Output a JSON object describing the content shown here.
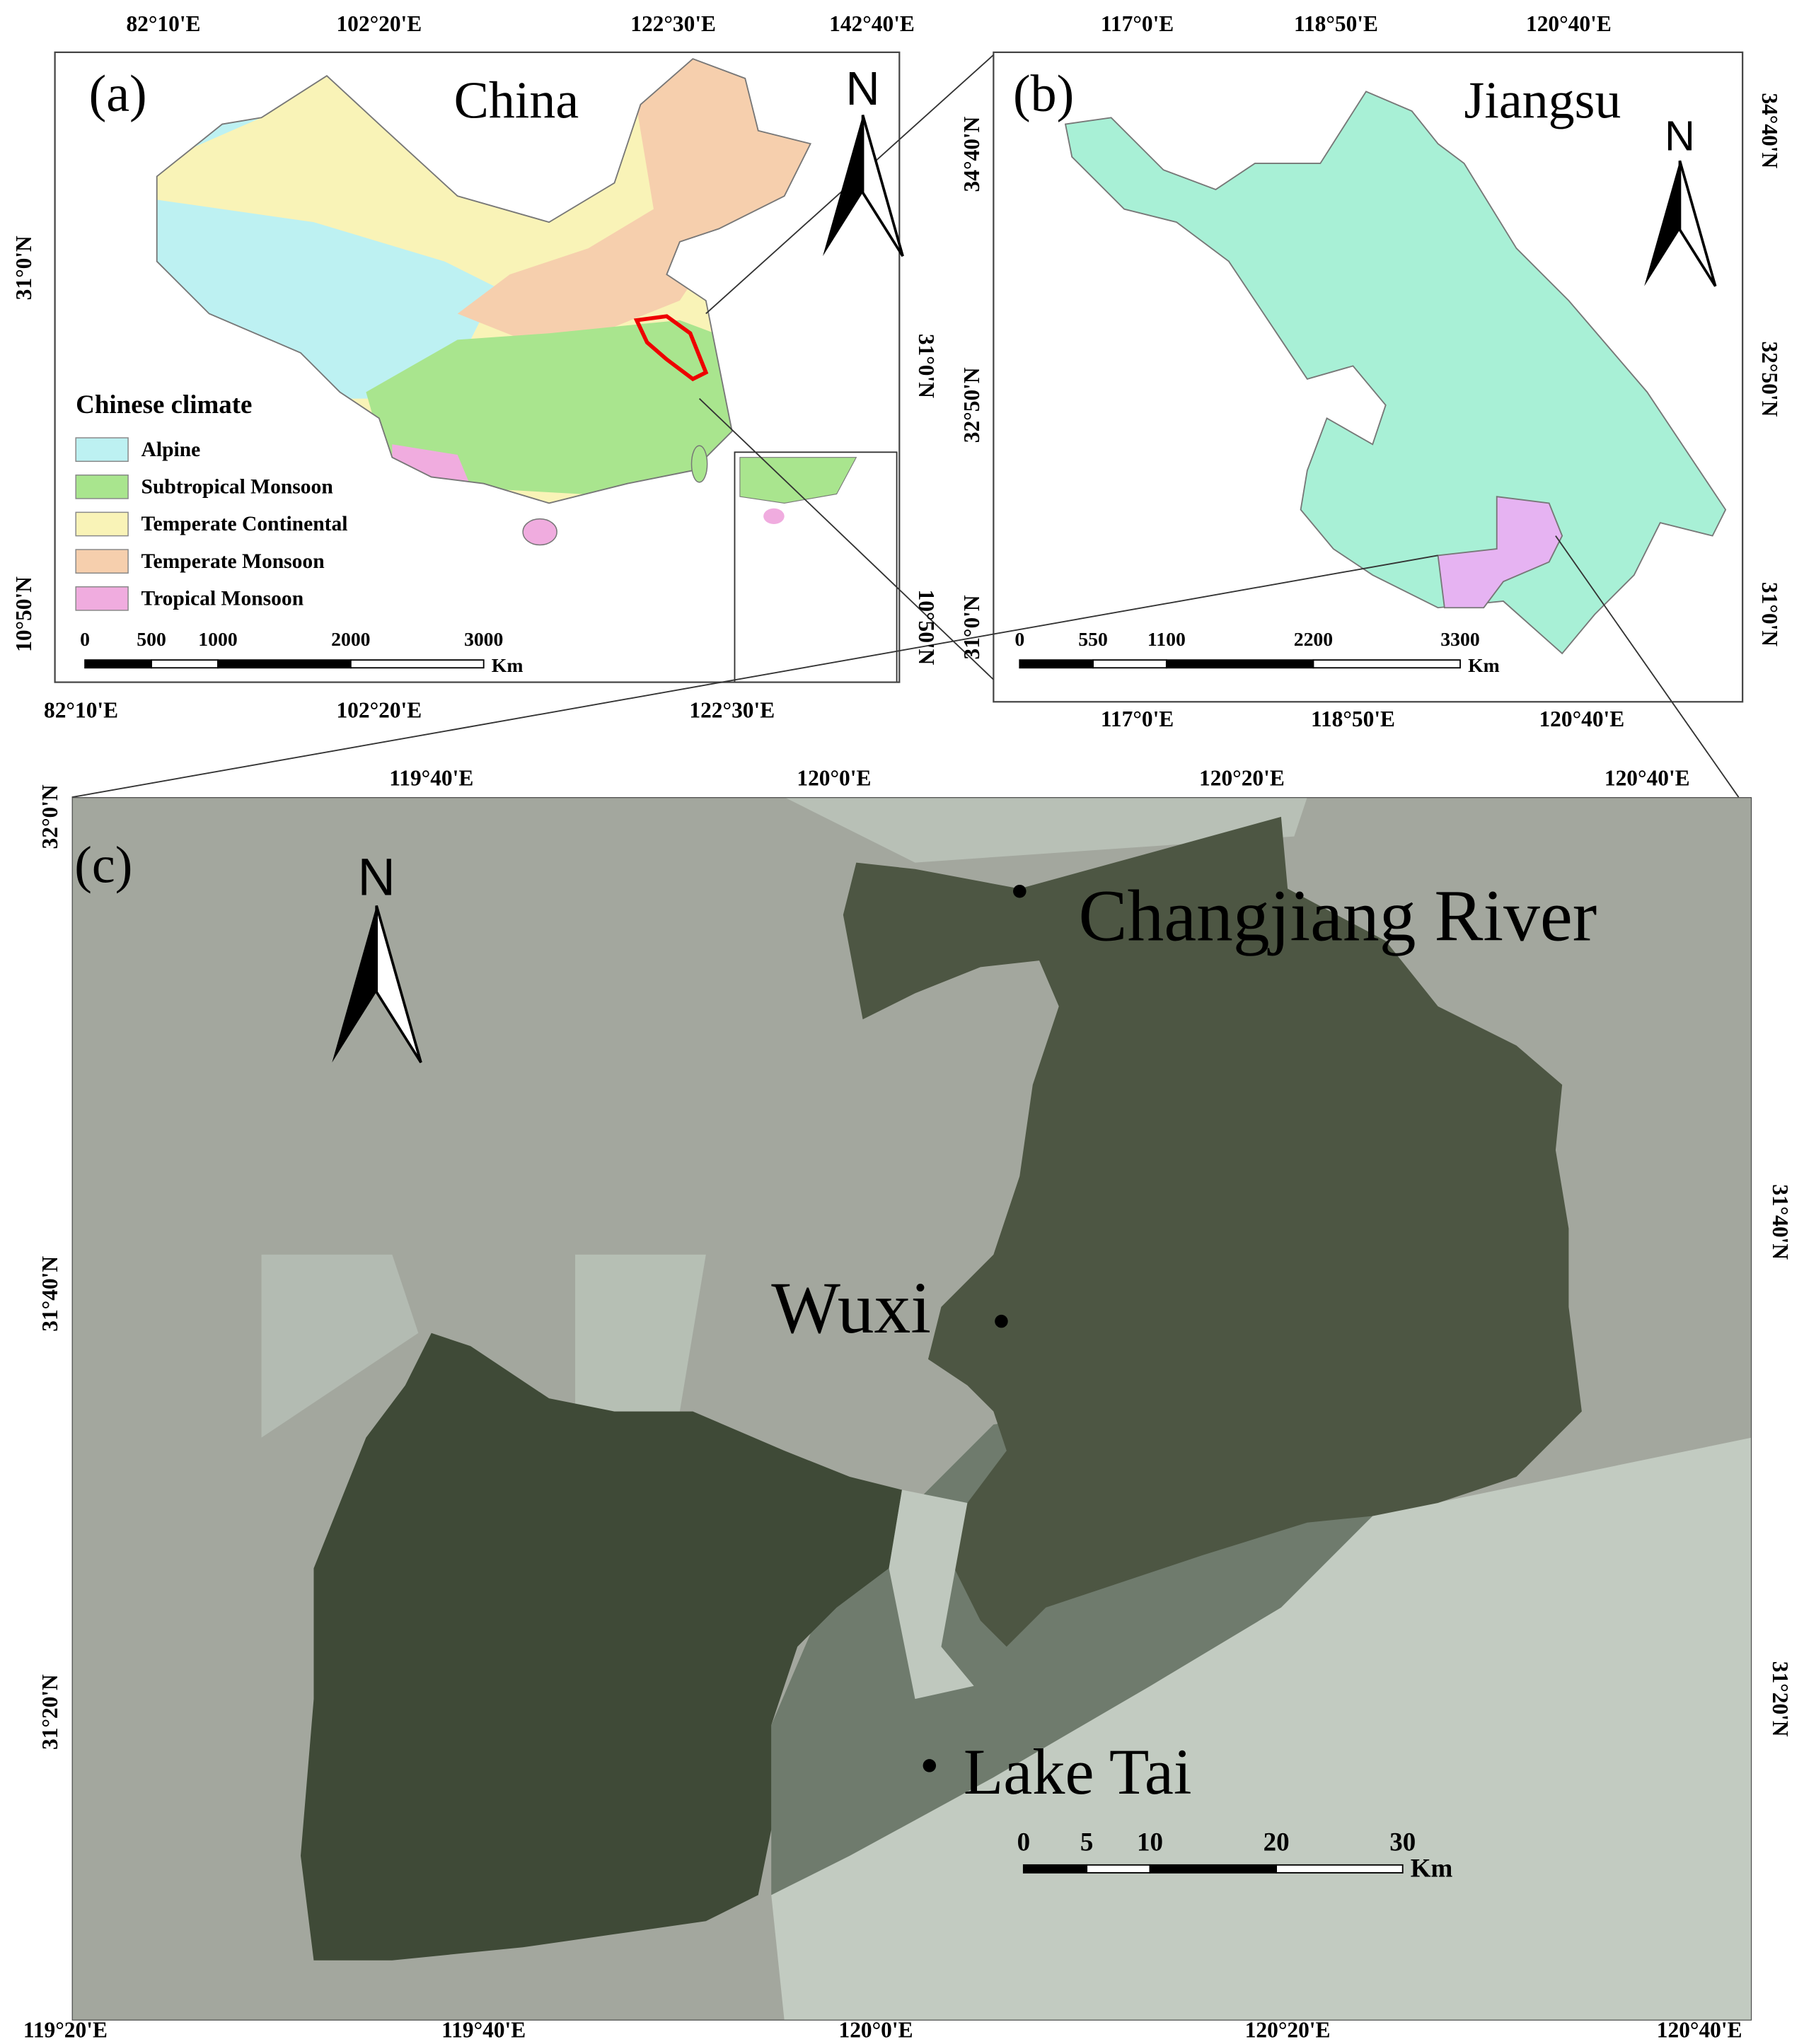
{
  "panels": [
    {
      "label": "(a)",
      "title": "China",
      "north": "N",
      "top_ticks": [
        "82°10'E",
        "102°20'E",
        "122°30'E",
        "142°40'E"
      ],
      "bottom_ticks": [
        "82°10'E",
        "102°20'E",
        "122°30'E"
      ],
      "left_ticks": [
        "31°0'N",
        "10°50'N"
      ],
      "right_ticks": [
        "31°0'N",
        "10°50'N"
      ],
      "scale_bar": {
        "ticks": [
          0,
          500,
          1000,
          2000,
          3000
        ],
        "unit": "Km"
      },
      "legend": {
        "title": "Chinese climate",
        "items": [
          {
            "name": "Alpine",
            "color": "#bdf1f2"
          },
          {
            "name": "Subtropical Monsoon",
            "color": "#a9e58e"
          },
          {
            "name": "Temperate Continental",
            "color": "#f9f3b7"
          },
          {
            "name": "Temperate Monsoon",
            "color": "#f6cfad"
          },
          {
            "name": "Tropical Monsoon",
            "color": "#f0acdf"
          }
        ]
      }
    },
    {
      "label": "(b)",
      "title": "Jiangsu",
      "north": "N",
      "top_ticks": [
        "117°0'E",
        "118°50'E",
        "120°40'E"
      ],
      "bottom_ticks": [
        "117°0'E",
        "118°50'E",
        "120°40'E"
      ],
      "left_ticks": [
        "34°40'N",
        "32°50'N",
        "31°0'N"
      ],
      "right_ticks": [
        "34°40'N",
        "32°50'N",
        "31°0'N"
      ],
      "scale_bar": {
        "ticks": [
          0,
          550,
          1100,
          2200,
          3300
        ],
        "unit": "Km"
      }
    },
    {
      "label": "(c)",
      "north": "N",
      "top_ticks": [
        "119°40'E",
        "120°0'E",
        "120°20'E",
        "120°40'E"
      ],
      "bottom_ticks": [
        "119°20'E",
        "119°40'E",
        "120°0'E",
        "120°20'E",
        "120°40'E"
      ],
      "left_ticks": [
        "32°0'N",
        "31°40'N",
        "31°20'N"
      ],
      "right_ticks": [
        "31°40'N",
        "31°20'N"
      ],
      "scale_bar": {
        "ticks": [
          0,
          5,
          10,
          20,
          30
        ],
        "unit": "Km"
      },
      "places": [
        "Changjiang River",
        "Wuxi",
        "Lake Tai"
      ]
    }
  ]
}
